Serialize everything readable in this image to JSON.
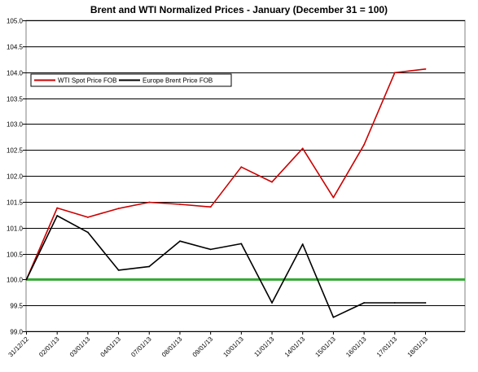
{
  "chart_data": {
    "type": "line",
    "title": "Brent and WTI Normalized Prices   -   January (December 31 = 100)",
    "xlabel": "",
    "ylabel": "",
    "categories": [
      "31/12/12",
      "02/01/13",
      "03/01/13",
      "04/01/13",
      "07/01/13",
      "08/01/13",
      "09/01/13",
      "10/01/13",
      "11/01/13",
      "14/01/13",
      "15/01/13",
      "16/01/13",
      "17/01/13",
      "18/01/13"
    ],
    "ylim": [
      99.0,
      105.0
    ],
    "yticks": [
      "99.0",
      "99.5",
      "100.0",
      "100.5",
      "101.0",
      "101.5",
      "102.0",
      "102.5",
      "103.0",
      "103.5",
      "104.0",
      "104.5",
      "105.0"
    ],
    "grid": "horizontal",
    "legend_position": "top-left",
    "reference_line": {
      "value": 100.0,
      "color": "#33aa33"
    },
    "series": [
      {
        "name": "WTI Spot Price FOB",
        "color": "#cc0000",
        "values": [
          100.0,
          101.38,
          101.2,
          101.37,
          101.49,
          101.45,
          101.4,
          102.17,
          101.88,
          102.53,
          101.58,
          102.6,
          103.99,
          104.06
        ]
      },
      {
        "name": "Europe Brent Price FOB",
        "color": "#000000",
        "values": [
          100.0,
          101.23,
          100.91,
          100.18,
          100.25,
          100.74,
          100.58,
          100.69,
          99.55,
          100.68,
          99.27,
          99.55,
          99.55,
          99.55
        ]
      }
    ]
  }
}
